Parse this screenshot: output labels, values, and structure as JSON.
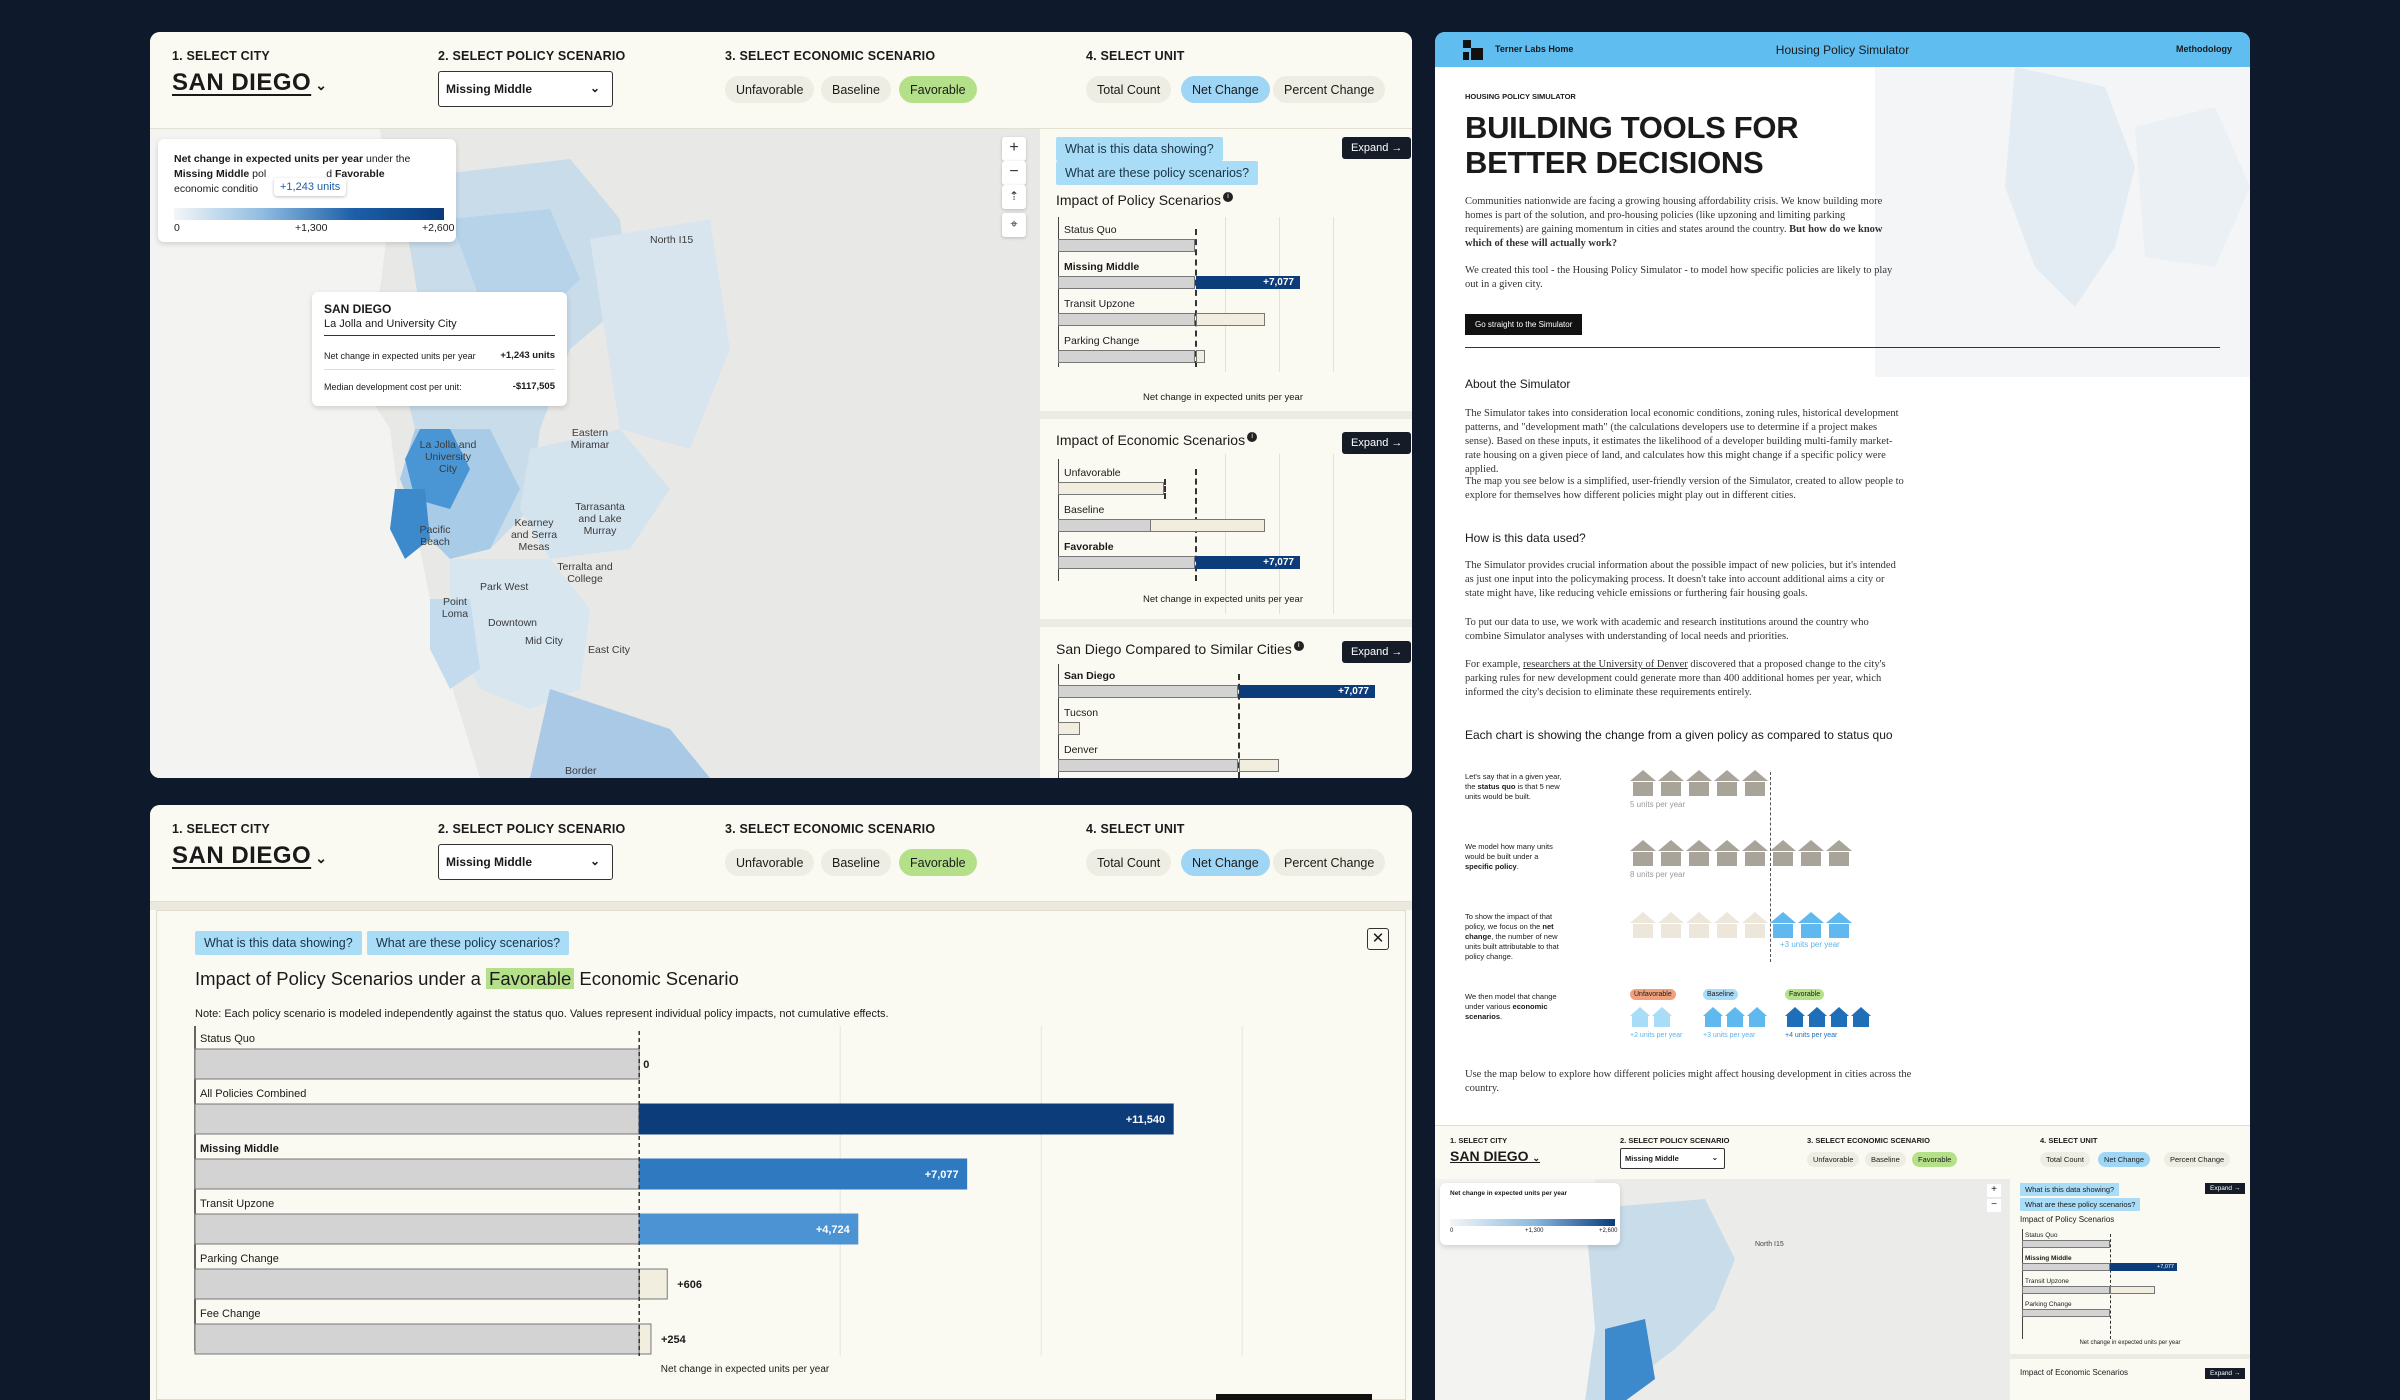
{
  "controls": {
    "step1": "1. SELECT CITY",
    "step2": "2. SELECT POLICY SCENARIO",
    "step3": "3. SELECT ECONOMIC SCENARIO",
    "step4": "4. SELECT UNIT",
    "city": "SAN DIEGO",
    "policy": "Missing Middle",
    "econ_options": [
      "Unfavorable",
      "Baseline",
      "Favorable"
    ],
    "unit_options": [
      "Total Count",
      "Net Change",
      "Percent Change"
    ]
  },
  "legend": {
    "text_a": "Net change in expected units per year",
    "text_b": " under the ",
    "text_c": "Missing Middle",
    "text_d": " pol",
    "text_e": "d ",
    "text_f": "Favorable",
    "text_g": "economic conditio",
    "tooltip": "+1,243 units",
    "ticks": [
      "0",
      "+1,300",
      "+2,600"
    ]
  },
  "map_card": {
    "city": "SAN DIEGO",
    "area": "La Jolla and University City",
    "row1_label": "Net change in expected units per year",
    "row1_value": "+1,243 units",
    "row2_label": "Median development cost per unit:",
    "row2_value": "-$117,505"
  },
  "map_labels": [
    "North I15",
    "La Jolla and University City",
    "Eastern Miramar",
    "Tarrasanta and Lake Murray",
    "Kearney and Serra Mesas",
    "Pacific Beach",
    "Terralta and College",
    "Park West",
    "Point Loma",
    "Downtown",
    "Mid City",
    "East City",
    "Border"
  ],
  "side": {
    "q1": "What is this data showing?",
    "q2": "What are these policy scenarios?",
    "expand": "Expand",
    "policy_title": "Impact of Policy Scenarios",
    "policy_bars": [
      {
        "label": "Status Quo",
        "value": 0
      },
      {
        "label": "Missing Middle",
        "value": 7077,
        "text": "+7,077"
      },
      {
        "label": "Transit Upzone",
        "value": 4724
      },
      {
        "label": "Parking Change",
        "value": 606
      }
    ],
    "xlabel": "Net change in expected units per year",
    "econ_title": "Impact of Economic Scenarios",
    "econ_bars": [
      {
        "label": "Unfavorable",
        "value": -2800
      },
      {
        "label": "Baseline",
        "value": 1800
      },
      {
        "label": "Favorable",
        "value": 7077,
        "text": "+7,077"
      }
    ],
    "compare_title": "San Diego Compared to Similar Cities",
    "compare_bars": [
      {
        "label": "San Diego",
        "text": "+7,077"
      },
      {
        "label": "Tucson"
      },
      {
        "label": "Denver"
      }
    ]
  },
  "expanded": {
    "title_a": "Impact of Policy Scenarios under a",
    "title_hl": "Favorable",
    "title_b": "Economic Scenario",
    "note": "Note: Each policy scenario is modeled independently against the status quo. Values represent individual policy impacts, not cumulative effects.",
    "xlabel": "Net change in expected units per year"
  },
  "chart_data": {
    "type": "bar",
    "title": "Impact of Policy Scenarios under a Favorable Economic Scenario",
    "xlabel": "Net change in expected units per year",
    "categories": [
      "Status Quo",
      "All Policies Combined",
      "Missing Middle",
      "Transit Upzone",
      "Parking Change",
      "Fee Change"
    ],
    "values": [
      0,
      11540,
      7077,
      4724,
      606,
      254
    ],
    "labels": [
      "0",
      "+11,540",
      "+7,077",
      "+4,724",
      "+606",
      "+254"
    ],
    "xlim": [
      -9600,
      14000
    ]
  },
  "right": {
    "nav_home": "Terner Labs Home",
    "nav_title": "Housing Policy Simulator",
    "nav_method": "Methodology",
    "kicker": "HOUSING POLICY SIMULATOR",
    "h1a": "BUILDING TOOLS FOR",
    "h1b": "BETTER DECISIONS",
    "p1": "Communities nationwide are facing a growing housing affordability crisis. We know building more homes is part of the solution, and pro-housing policies (like upzoning and limiting parking requirements) are gaining momentum in cities and states around the country.",
    "p1b": "But how do we know which of these will actually work?",
    "p2": "We created this tool - the Housing Policy Simulator - to model how specific policies are likely to play out in a given city.",
    "cta": "Go straight to the Simulator",
    "about_h": "About the Simulator",
    "about_p1": "The Simulator takes into consideration local economic conditions, zoning rules, historical development patterns, and \"development math\" (the calculations developers use to determine if a project makes sense). Based on these inputs, it estimates the likelihood of a developer building multi-family market-rate housing on a given piece of land, and calculates how this might change if a specific policy were applied.",
    "about_p2": "The map you see below is a simplified, user-friendly version of the Simulator, created to allow people to explore for themselves how different policies might play out in different cities.",
    "how_h": "How is this data used?",
    "how_p1": "The Simulator provides crucial information about the possible impact of new policies, but it's intended as just one input into the policymaking process. It doesn't take into account additional aims a city or state might have, like reducing vehicle emissions or furthering fair housing goals.",
    "how_p2": "To put our data to use, we work with academic and research institutions around the country who combine Simulator analyses with understanding of local needs and priorities.",
    "how_p3a": "For example, ",
    "how_p3link": "researchers at the University of Denver",
    "how_p3b": " discovered that a proposed change to the city's parking rules for new development could generate more than 400 additional homes per year, which informed the city's decision to eliminate these requirements entirely.",
    "chart_h": "Each chart is showing the change from a given policy as compared to status quo",
    "step1a": "Let's say that in a given year, the ",
    "step1b": "status quo",
    "step1c": " is that 5 new units would be built.",
    "step1v": "5 units per year",
    "step2a": "We model how many units would be built under a ",
    "step2b": "specific policy",
    "step2v": "8 units per year",
    "step3a": "To show the impact of that policy, we focus on the ",
    "step3b": "net change",
    "step3c": ", the number of new units built attributable to that policy change.",
    "step3v": "+3 units per year",
    "step4a": "We then model that change under various ",
    "step4b": "economic scenarios",
    "tags": [
      "Unfavorable",
      "Baseline",
      "Favorable"
    ],
    "tagv": [
      "+2 units per year",
      "+3 units per year",
      "+4 units per year"
    ],
    "closing": "Use the map below to explore how different policies might affect housing development in cities across the country.",
    "mini_side_title": "Impact of Policy Scenarios",
    "mini_econ_title": "Impact of Economic Scenarios"
  },
  "colors": {
    "navy": "#0c3d7a",
    "blue": "#3a86c8",
    "sky": "#a9dcf7",
    "green": "#b5e08a",
    "bg": "#0e1a2c"
  }
}
